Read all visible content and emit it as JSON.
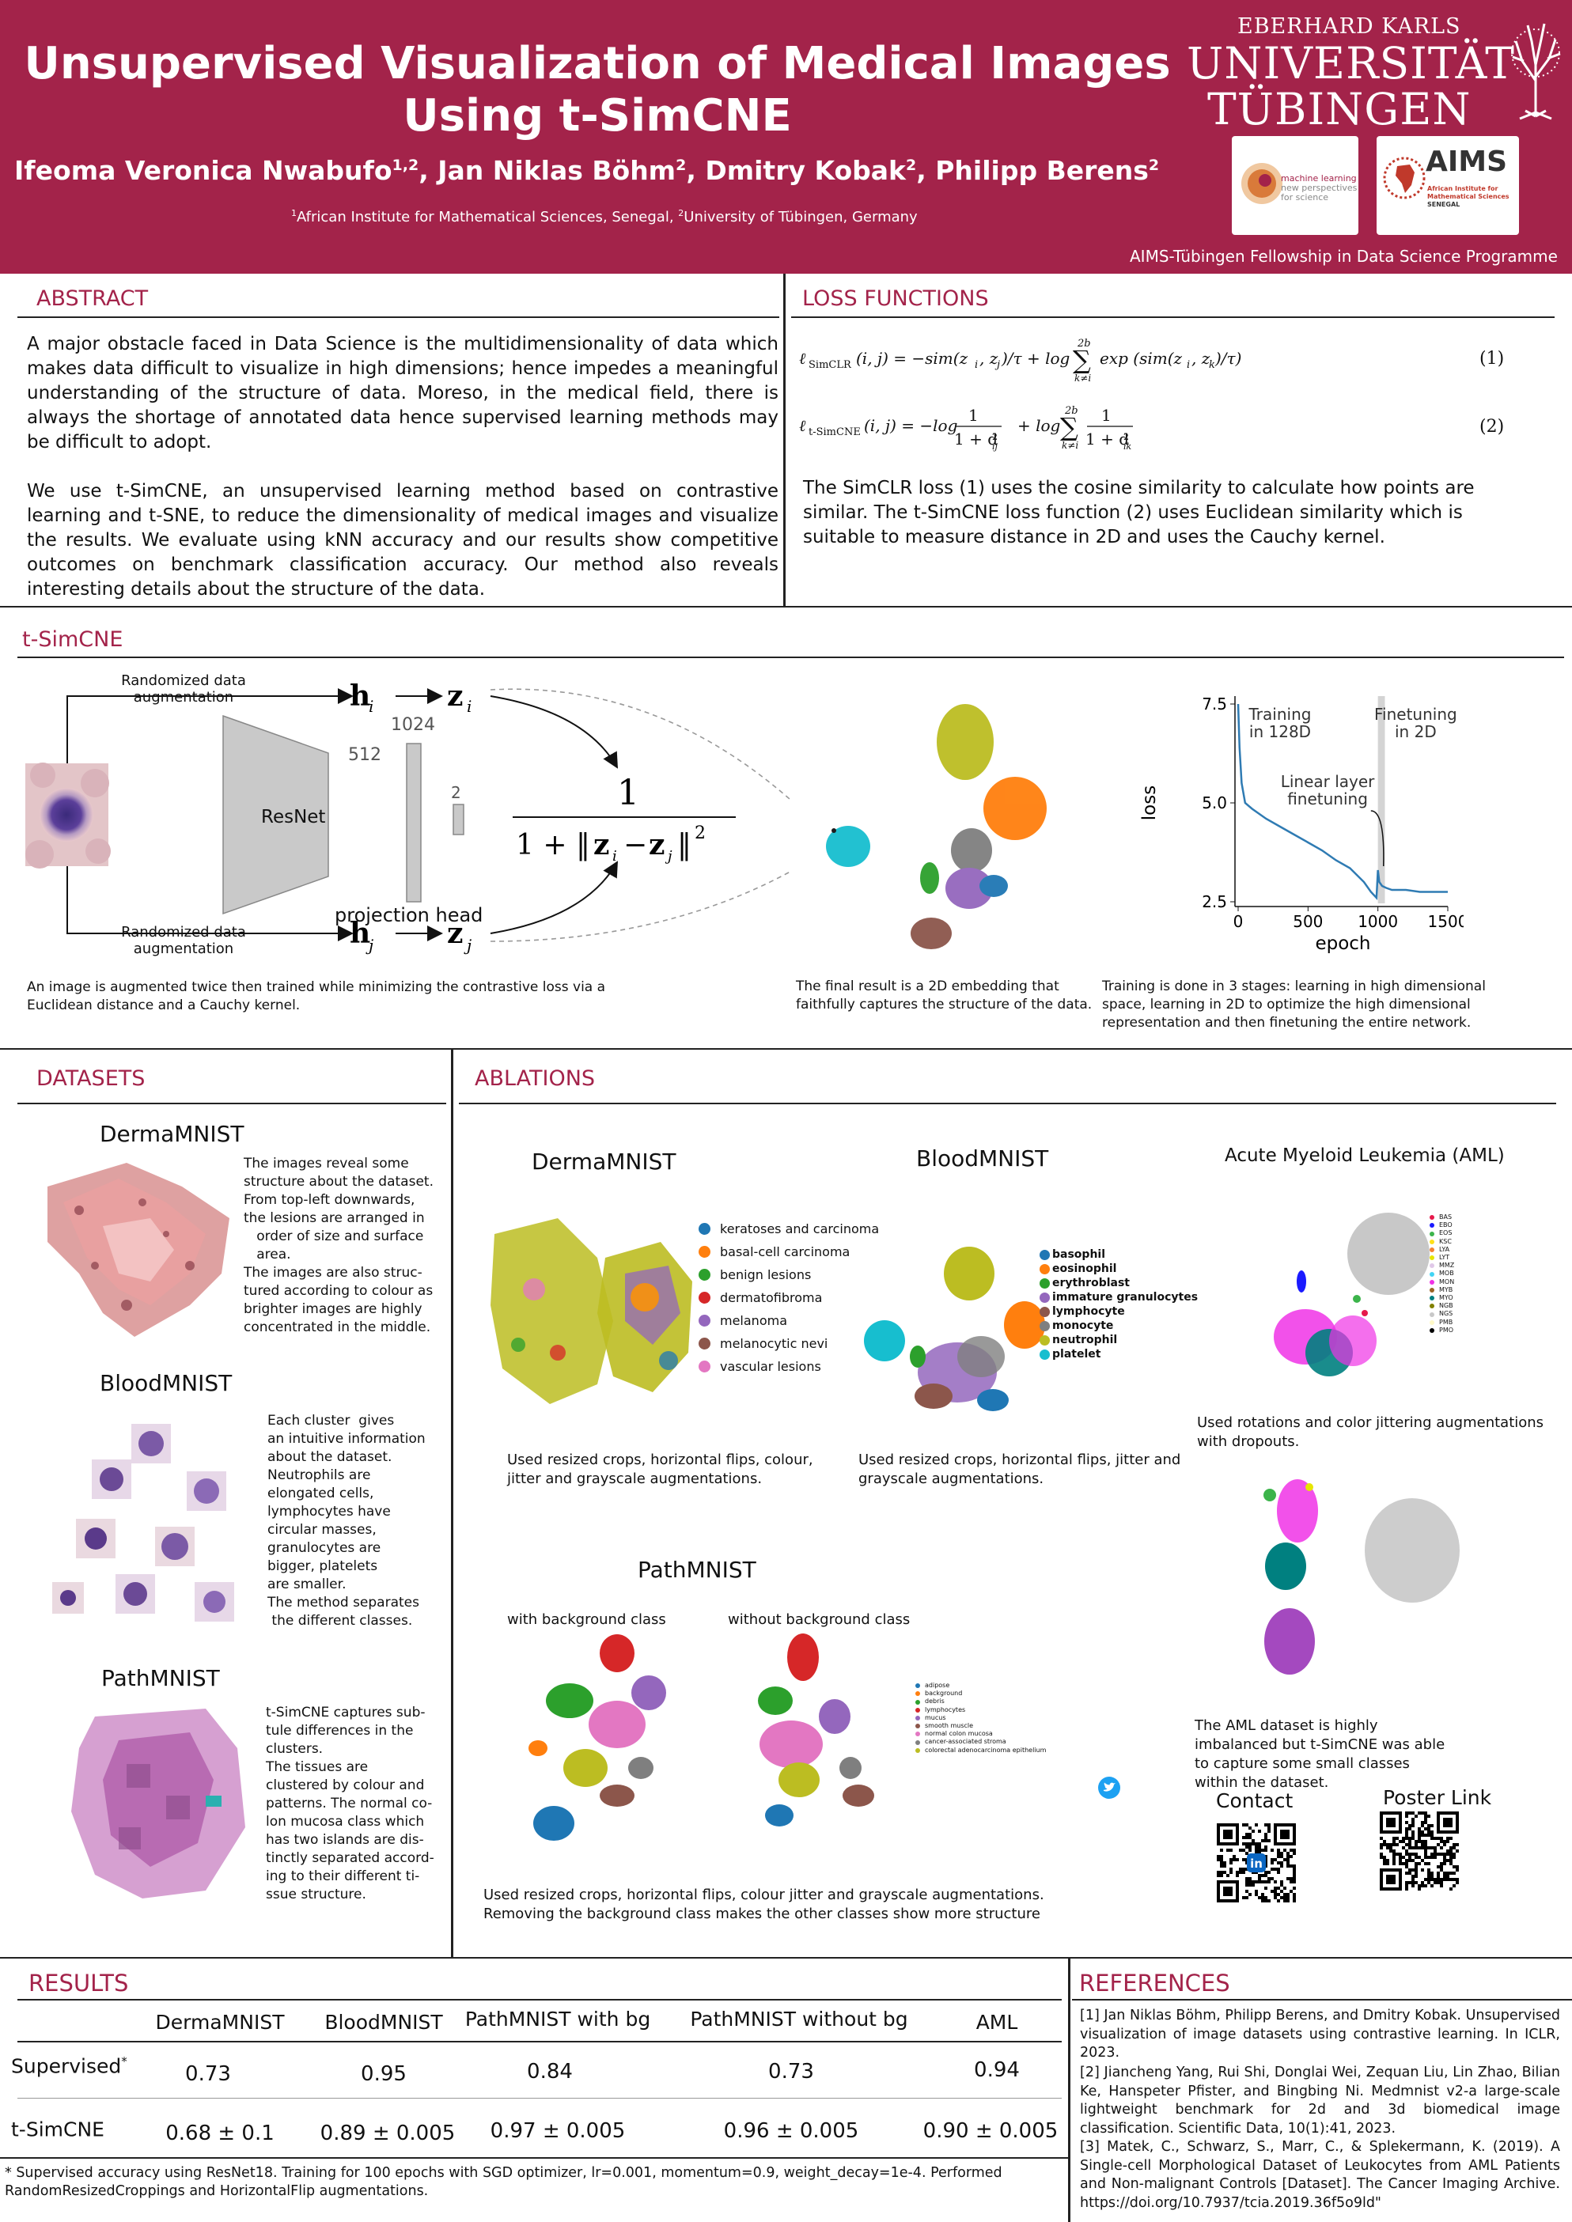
{
  "header": {
    "title_line1": "Unsupervised Visualization of Medical Images",
    "title_line2": "Using t-SimCNE",
    "authors": [
      {
        "name": "Ifeoma Veronica Nwabufo",
        "sup": "1,2",
        "sep": ", "
      },
      {
        "name": "Jan Niklas Böhm",
        "sup": "2",
        "sep": ", "
      },
      {
        "name": "Dmitry Kobak",
        "sup": "2",
        "sep": ", "
      },
      {
        "name": "Philipp Berens",
        "sup": "2",
        "sep": ""
      }
    ],
    "affil_1": "African Institute for Mathematical Sciences, Senegal, ",
    "affil_2": "University of Tübingen, Germany",
    "university": {
      "line1": "EBERHARD KARLS",
      "line2": "UNIVERSITÄT",
      "line3": "TÜBINGEN"
    },
    "ml_logo": {
      "line1": "machine learning",
      "line2": "new perspectives",
      "line3": "for science"
    },
    "aims_logo": {
      "name": "AIMS",
      "line1": "African Institute for",
      "line2": "Mathematical Sciences",
      "line3": "SENEGAL"
    },
    "fellowship": "AIMS-Tübingen Fellowship in Data Science Programme"
  },
  "abstract": {
    "heading": "ABSTRACT",
    "p1": "A major obstacle faced in Data Science is the multidimensionality of data which makes data difficult to visualize in high dimensions; hence impedes a meaningful understanding of the structure of data. Moreso, in the medical field, there is always the shortage of annotated data hence supervised learning methods may be difficult to adopt.",
    "p2": "We use t-SimCNE, an unsupervised learning method based on contrastive learning and t-SNE, to reduce the dimensionality of medical images and visualize the results. We evaluate using kNN accuracy and our results show competitive outcomes on benchmark classification accuracy. Our method also reveals interesting details about the structure of the data."
  },
  "loss": {
    "heading": "LOSS FUNCTIONS",
    "eq1_num": "(1)",
    "eq2_num": "(2)",
    "text": "The SimCLR loss (1) uses the cosine similarity to calculate how points are similar. The t-SimCNE loss function (2) uses Euclidean similarity which is suitable to measure distance in 2D and uses the Cauchy kernel."
  },
  "tsimcne": {
    "heading": "t-SimCNE",
    "aug_label": "Randomized data augmentation",
    "resnet": "ResNet",
    "dim_512": "512",
    "dim_1024": "1024",
    "dim_2": "2",
    "proj_head": "projection head",
    "caption_left": "An image is augmented twice then trained while minimizing the contrastive loss via a Euclidean distance and a Cauchy kernel.",
    "caption_mid": "The final result is a 2D embedding that faithfully captures the structure of the data.",
    "caption_right": "Training is done in 3 stages: learning in high dimensional space, learning in 2D to optimize the high dimensional representation and then finetuning the entire network."
  },
  "chart_data": {
    "type": "line",
    "xlabel": "epoch",
    "ylabel": "loss",
    "xlim": [
      0,
      1500
    ],
    "ylim": [
      2.5,
      7.5
    ],
    "xticks": [
      "0",
      "500",
      "1000",
      "1500"
    ],
    "yticks": [
      "7.5",
      "5.0",
      "2.5"
    ],
    "annotations": [
      "Training in 128D",
      "Finetuning in 2D",
      "Linear layer finetuning"
    ],
    "series": [
      {
        "x": [
          0,
          10,
          25,
          50,
          100,
          200,
          300,
          400,
          500,
          600,
          700,
          800,
          900,
          950,
          990,
          1000,
          1010,
          1030,
          1060,
          1100,
          1200,
          1300,
          1400,
          1500
        ],
        "values": [
          7.5,
          6.4,
          5.5,
          5.0,
          4.85,
          4.6,
          4.4,
          4.2,
          4.0,
          3.8,
          3.55,
          3.35,
          3.0,
          2.75,
          2.6,
          3.3,
          3.0,
          2.9,
          2.85,
          2.8,
          2.8,
          2.75,
          2.75,
          2.75
        ]
      }
    ],
    "finetune_region": [
      1000,
      1050
    ],
    "color": "#2f7bb3"
  },
  "datasets": {
    "heading": "DATASETS",
    "derma_title": "DermaMNIST",
    "derma_text": [
      "The images reveal some",
      "structure about the dataset.",
      "From top-left downwards,",
      "the lesions are arranged in",
      "   order of size and surface",
      "   area.",
      "The images are also struc-",
      "tured according to colour as",
      "brighter images are highly",
      "concentrated in the middle."
    ],
    "blood_title": "BloodMNIST",
    "blood_text": [
      "Each cluster  gives",
      "an intuitive information",
      "about the dataset.",
      "Neutrophils are",
      "elongated cells,",
      "lymphocytes have",
      "circular masses,",
      "granulocytes are",
      "bigger, platelets",
      "are smaller.",
      "The method separates",
      " the different classes."
    ],
    "path_title": "PathMNIST",
    "path_text": [
      "t-SimCNE captures sub-",
      "tule differences in the",
      "clusters.",
      "The tissues are",
      "clustered by colour and",
      "patterns. The normal co-",
      "lon mucosa class which",
      "has two islands are dis-",
      "tinctly separated accord-",
      "ing to their different ti-",
      "ssue structure."
    ]
  },
  "ablations": {
    "heading": "ABLATIONS",
    "derma_title": "DermaMNIST",
    "derma_legend": [
      {
        "label": "keratoses and carcinoma",
        "color": "#1f77b4"
      },
      {
        "label": "basal-cell carcinoma",
        "color": "#ff7f0e"
      },
      {
        "label": "benign lesions",
        "color": "#2ca02c"
      },
      {
        "label": "dermatofibroma",
        "color": "#d62728"
      },
      {
        "label": "melanoma",
        "color": "#9467bd"
      },
      {
        "label": "melanocytic nevi",
        "color": "#8c564b"
      },
      {
        "label": "vascular lesions",
        "color": "#e377c2"
      }
    ],
    "derma_caption": "Used resized crops, horizontal flips, colour, jitter and grayscale augmentations.",
    "blood_title": "BloodMNIST",
    "blood_legend": [
      {
        "label": "basophil",
        "color": "#1f77b4"
      },
      {
        "label": "eosinophil",
        "color": "#ff7f0e"
      },
      {
        "label": "erythroblast",
        "color": "#2ca02c"
      },
      {
        "label": "immature granulocytes",
        "color": "#9467bd"
      },
      {
        "label": "lymphocyte",
        "color": "#8c564b"
      },
      {
        "label": "monocyte",
        "color": "#7f7f7f"
      },
      {
        "label": "neutrophil",
        "color": "#bcbd22"
      },
      {
        "label": "platelet",
        "color": "#17becf"
      }
    ],
    "blood_caption": "Used resized crops, horizontal flips, jitter and grayscale augmentations.",
    "aml_title": "Acute Myeloid Leukemia (AML)",
    "aml_legend": [
      {
        "label": "BAS",
        "color": "#e6194b"
      },
      {
        "label": "EBO",
        "color": "#1a1aff"
      },
      {
        "label": "EOS",
        "color": "#3cb44b"
      },
      {
        "label": "KSC",
        "color": "#ffe119"
      },
      {
        "label": "LYA",
        "color": "#f58231"
      },
      {
        "label": "LYT",
        "color": "#e6e600"
      },
      {
        "label": "MMZ",
        "color": "#e0c8e8"
      },
      {
        "label": "MOB",
        "color": "#42d4f4"
      },
      {
        "label": "MON",
        "color": "#f032e6"
      },
      {
        "label": "MYB",
        "color": "#9a6324"
      },
      {
        "label": "MYO",
        "color": "#008080"
      },
      {
        "label": "NGB",
        "color": "#808000"
      },
      {
        "label": "NGS",
        "color": "#c8c8c8"
      },
      {
        "label": "PMB",
        "color": "#fffac8"
      },
      {
        "label": "PMO",
        "color": "#000000"
      }
    ],
    "aml_caption1": "Used rotations and color jittering augmentations with dropouts.",
    "aml_caption2": "The AML dataset is highly imbalanced but t-SimCNE was able to capture some small classes within the dataset.",
    "path_title": "PathMNIST",
    "path_with": "with background class",
    "path_without": "without  background class",
    "path_legend": [
      {
        "label": "adipose",
        "color": "#1f77b4"
      },
      {
        "label": "background",
        "color": "#ff7f0e"
      },
      {
        "label": "debris",
        "color": "#2ca02c"
      },
      {
        "label": "lymphocytes",
        "color": "#d62728"
      },
      {
        "label": "mucus",
        "color": "#9467bd"
      },
      {
        "label": "smooth muscle",
        "color": "#8c564b"
      },
      {
        "label": "normal colon mucosa",
        "color": "#e377c2"
      },
      {
        "label": "cancer-associated stroma",
        "color": "#7f7f7f"
      },
      {
        "label": "colorectal adenocarcinoma epithelium",
        "color": "#bcbd22"
      }
    ],
    "path_caption": "Used resized crops, horizontal flips, colour jitter and grayscale augmentations. Removing the background class makes the other classes show more structure",
    "contact": "Contact",
    "poster_link": "Poster Link"
  },
  "results": {
    "heading": "RESULTS",
    "columns": [
      "DermaMNIST",
      "BloodMNIST",
      "PathMNIST with bg",
      "PathMNIST without bg",
      "AML"
    ],
    "rows": [
      {
        "name": "Supervised",
        "sup": "*",
        "values": [
          "0.73",
          "0.95",
          "0.84",
          "0.73",
          "0.94"
        ]
      },
      {
        "name": "t-SimCNE",
        "sup": "",
        "values": [
          "0.68 ± 0.1",
          "0.89 ± 0.005",
          "0.97 ± 0.005",
          "0.96 ± 0.005",
          "0.90 ± 0.005"
        ]
      }
    ],
    "footnote": "* Supervised accuracy using ResNet18. Training for 100 epochs with SGD optimizer,  lr=0.001, momentum=0.9, weight_decay=1e-4. Performed RandomResizedCroppings and HorizontalFlip augmentations."
  },
  "references": {
    "heading": "REFERENCES",
    "items": [
      "[1] Jan Niklas Böhm, Philipp Berens, and Dmitry Kobak. Unsupervised visualization of image datasets using contrastive learning. In ICLR, 2023.",
      "[2] Jiancheng Yang, Rui Shi, Donglai Wei, Zequan Liu, Lin Zhao, Bilian Ke, Hanspeter Pfister, and Bingbing Ni. Medmnist v2-a large-scale lightweight benchmark for 2d and 3d biomedical image classification. Scientific Data, 10(1):41, 2023.",
      "[3] Matek, C., Schwarz, S., Marr, C., & Splekermann, K. (2019). A Single-cell Morphological Dataset of Leukocytes from AML Patients and Non-malignant Controls [Dataset]. The Cancer Imaging Archive. https://doi.org/10.7937/tcia.2019.36f5o9ld\""
    ]
  },
  "colors": {
    "brand": "#a3234a",
    "heading": "#a3234a"
  }
}
